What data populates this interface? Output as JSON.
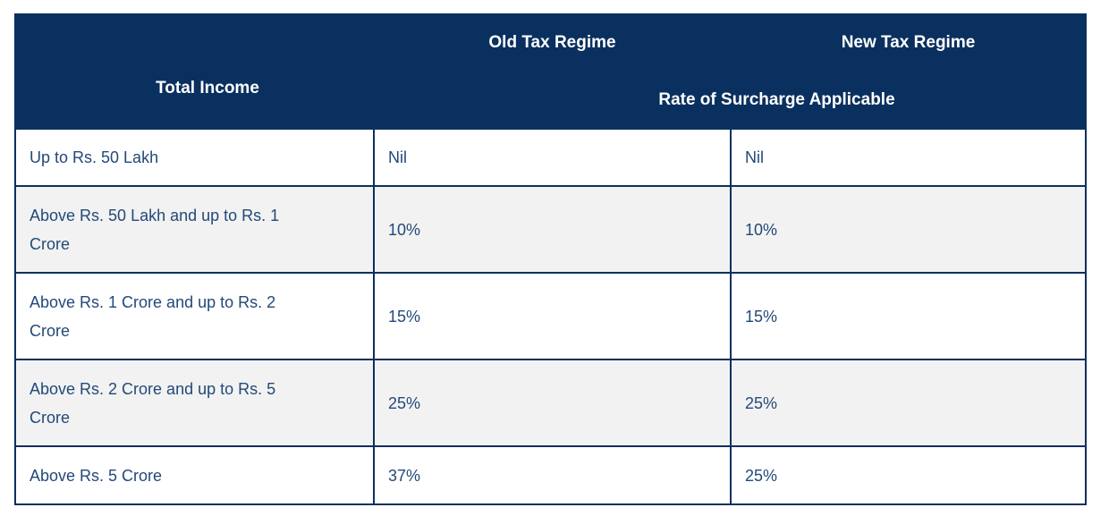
{
  "colors": {
    "header_bg": "#0A305F",
    "border": "#0A305F",
    "body_text": "#234979",
    "alt_row_bg": "#F2F2F2"
  },
  "chart_data": {
    "type": "table",
    "title": "Rate of Surcharge Applicable - Old vs New Tax Regime",
    "columns": [
      "Total Income",
      "Old Tax Regime",
      "New Tax Regime"
    ],
    "subheader": "Rate of Surcharge Applicable",
    "rows": [
      [
        "Up to Rs. 50 Lakh",
        "Nil",
        "Nil"
      ],
      [
        "Above Rs. 50 Lakh and up to Rs. 1 Crore",
        "10%",
        "10%"
      ],
      [
        "Above Rs. 1 Crore and up to Rs. 2 Crore",
        "15%",
        "15%"
      ],
      [
        "Above Rs. 2 Crore and up to Rs. 5 Crore",
        "25%",
        "25%"
      ],
      [
        "Above Rs. 5 Crore",
        "37%",
        "25%"
      ]
    ]
  }
}
